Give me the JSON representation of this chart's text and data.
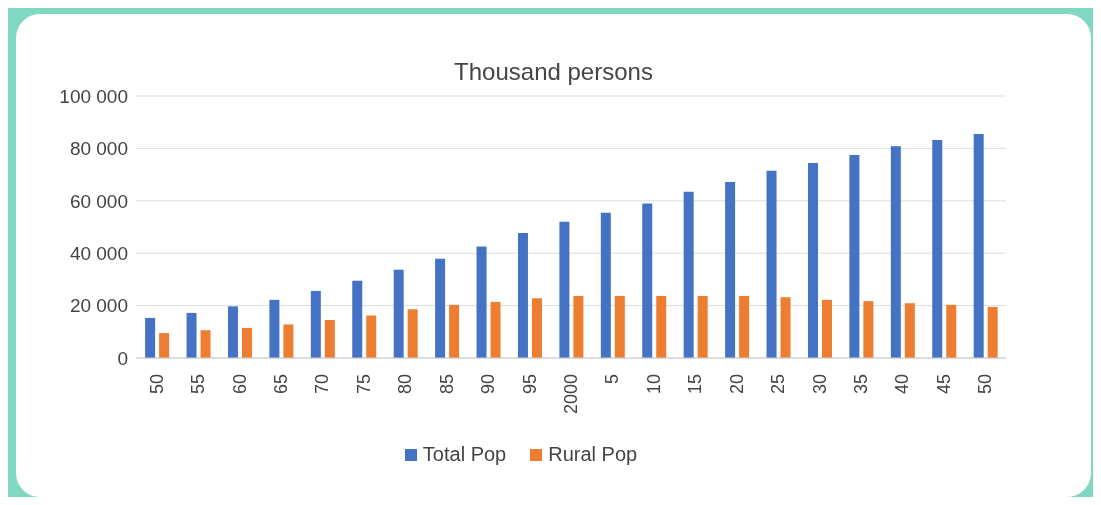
{
  "chart_data": {
    "type": "bar",
    "title": "Thousand persons",
    "categories": [
      "50",
      "55",
      "60",
      "65",
      "70",
      "75",
      "80",
      "85",
      "90",
      "95",
      "2000",
      "5",
      "10",
      "15",
      "20",
      "25",
      "30",
      "35",
      "40",
      "45",
      "50"
    ],
    "series": [
      {
        "name": "Total Pop",
        "color": "#4472c4",
        "values": [
          15300,
          17200,
          19700,
          22200,
          25600,
          29500,
          33700,
          37900,
          42600,
          47700,
          52000,
          55400,
          59000,
          63500,
          67200,
          71500,
          74400,
          77500,
          80800,
          83200,
          85500
        ]
      },
      {
        "name": "Rural Pop",
        "color": "#ed7d31",
        "values": [
          9500,
          10600,
          11500,
          12800,
          14500,
          16200,
          18600,
          20300,
          21400,
          22800,
          23700,
          23700,
          23700,
          23700,
          23700,
          23200,
          22200,
          21700,
          20900,
          20300,
          19500
        ]
      }
    ],
    "ylim": [
      0,
      100000
    ],
    "yticks": [
      {
        "value": 0,
        "label": "0"
      },
      {
        "value": 20000,
        "label": "20 000"
      },
      {
        "value": 40000,
        "label": "40 000"
      },
      {
        "value": 60000,
        "label": "60 000"
      },
      {
        "value": 80000,
        "label": "80 000"
      },
      {
        "value": 100000,
        "label": "100 000"
      }
    ],
    "grid": "y",
    "legend": "bottom"
  }
}
